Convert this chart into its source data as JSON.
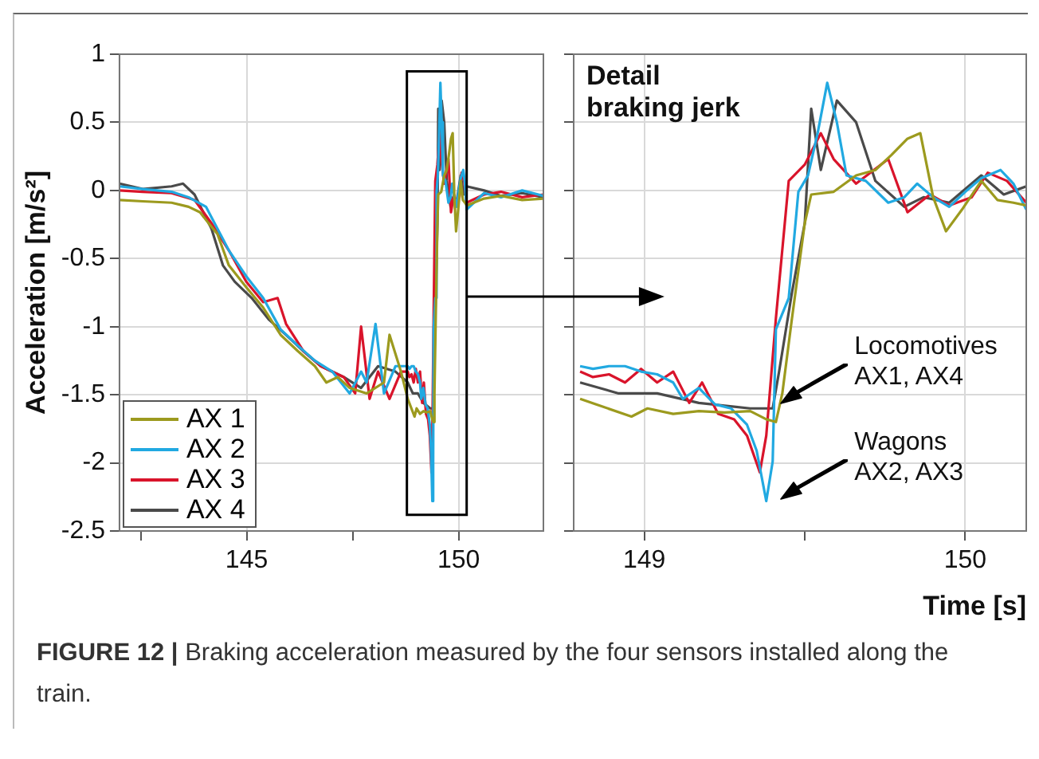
{
  "chart_data": [
    {
      "type": "line",
      "ylabel": "Acceleration [m/s²]",
      "annotations": [
        "FIGURE 12 |",
        "Braking acceleration measured by the four sensors installed along the train."
      ],
      "xlim": [
        142,
        152
      ],
      "xticks": [
        {
          "value": 142.5,
          "label": null
        },
        145,
        {
          "value": 147.5,
          "label": null
        },
        150
      ],
      "ylim": [
        -2.5,
        1
      ],
      "yticks": [
        -2.5,
        -2,
        -1.5,
        -1,
        -0.5,
        0,
        0.5,
        1
      ],
      "grid": true,
      "legend": "bottom left",
      "series": [
        {
          "name": "AX 1",
          "color": "#9c9a1e",
          "x": [
            142,
            142.55,
            143.23,
            143.63,
            143.9,
            144.1,
            144.31,
            144.58,
            144.99,
            145.39,
            145.8,
            146.21,
            146.61,
            146.88,
            147.15,
            147.43,
            147.83,
            148.24,
            148.37,
            148.64,
            148.8,
            148.96,
            149.01,
            149.09,
            149.17,
            149.25,
            149.33,
            149.38,
            149.41,
            149.43,
            149.46,
            149.5,
            149.52,
            149.59,
            149.66,
            149.72,
            149.77,
            149.82,
            149.86,
            149.9,
            149.94,
            149.99,
            150.05,
            150.1,
            150.15,
            150.19,
            150.6,
            151,
            151.5,
            152
          ],
          "values": [
            -0.07,
            -0.08,
            -0.09,
            -0.12,
            -0.16,
            -0.24,
            -0.32,
            -0.55,
            -0.71,
            -0.86,
            -1.06,
            -1.18,
            -1.29,
            -1.41,
            -1.37,
            -1.45,
            -1.49,
            -1.41,
            -1.06,
            -1.33,
            -1.53,
            -1.66,
            -1.6,
            -1.64,
            -1.62,
            -1.63,
            -1.62,
            -1.68,
            -1.7,
            -1.49,
            -0.94,
            -0.24,
            -0.03,
            -0.01,
            0.11,
            0.15,
            0.26,
            0.38,
            0.42,
            -0.05,
            -0.3,
            -0.14,
            0.07,
            -0.07,
            -0.09,
            -0.11,
            -0.06,
            -0.04,
            -0.07,
            -0.06
          ]
        },
        {
          "name": "AX 2",
          "color": "#21a9e1",
          "x": [
            142,
            142.55,
            143.23,
            143.63,
            144.04,
            144.31,
            144.58,
            144.99,
            145.39,
            145.8,
            146.21,
            146.61,
            147.02,
            147.43,
            147.7,
            147.83,
            148.04,
            148.24,
            148.51,
            148.8,
            148.84,
            148.89,
            148.94,
            148.99,
            149.04,
            149.09,
            149.12,
            149.17,
            149.22,
            149.27,
            149.32,
            149.35,
            149.38,
            149.4,
            149.41,
            149.45,
            149.48,
            149.51,
            149.54,
            149.57,
            149.6,
            149.63,
            149.69,
            149.76,
            149.81,
            149.85,
            149.9,
            149.95,
            150,
            150.05,
            150.11,
            150.15,
            150.19,
            150.6,
            151,
            151.5,
            152
          ],
          "values": [
            0.03,
            0.01,
            -0.01,
            -0.05,
            -0.12,
            -0.28,
            -0.44,
            -0.63,
            -0.79,
            -1.02,
            -1.14,
            -1.25,
            -1.33,
            -1.49,
            -1.33,
            -1.41,
            -0.98,
            -1.49,
            -1.29,
            -1.29,
            -1.31,
            -1.29,
            -1.29,
            -1.33,
            -1.35,
            -1.41,
            -1.53,
            -1.45,
            -1.57,
            -1.6,
            -1.72,
            -1.91,
            -2.28,
            -1.99,
            -1.02,
            -0.79,
            -0.01,
            0.11,
            0.42,
            0.79,
            0.5,
            0.11,
            0.07,
            -0.09,
            -0.05,
            0.05,
            -0.05,
            -0.12,
            -0.01,
            0.09,
            0.15,
            0.05,
            -0.14,
            -0.02,
            -0.05,
            0,
            -0.04
          ]
        },
        {
          "name": "AX 3",
          "color": "#d9142b",
          "x": [
            142,
            142.55,
            143.23,
            143.77,
            144.17,
            144.58,
            144.99,
            145.39,
            145.73,
            145.93,
            146.34,
            146.75,
            147.29,
            147.56,
            147.7,
            147.9,
            148.1,
            148.37,
            148.64,
            148.8,
            148.84,
            148.89,
            148.94,
            148.99,
            149.04,
            149.09,
            149.14,
            149.18,
            149.23,
            149.28,
            149.32,
            149.36,
            149.38,
            149.41,
            149.45,
            149.5,
            149.55,
            149.59,
            149.66,
            149.76,
            149.82,
            149.89,
            149.95,
            150.02,
            150.07,
            150.13,
            150.19,
            150.6,
            151,
            151.5,
            152
          ],
          "values": [
            0,
            -0.01,
            -0.02,
            -0.07,
            -0.24,
            -0.44,
            -0.67,
            -0.82,
            -0.79,
            -0.98,
            -1.18,
            -1.29,
            -1.37,
            -1.49,
            -1,
            -1.53,
            -1.33,
            -1.53,
            -1.33,
            -1.33,
            -1.37,
            -1.35,
            -1.41,
            -1.31,
            -1.41,
            -1.33,
            -1.56,
            -1.41,
            -1.64,
            -1.68,
            -1.8,
            -2.07,
            -1.8,
            -0.94,
            0.07,
            0.19,
            0.42,
            0.23,
            0.05,
            0.23,
            -0.16,
            -0.03,
            -0.11,
            -0.05,
            0.13,
            0.07,
            -0.09,
            -0.03,
            -0.01,
            -0.05,
            -0.03
          ]
        },
        {
          "name": "AX 4",
          "color": "#4a4a4a",
          "x": [
            142,
            142.55,
            143.23,
            143.5,
            143.77,
            144.17,
            144.44,
            144.72,
            145.12,
            145.53,
            145.93,
            146.34,
            146.75,
            147.29,
            147.7,
            148.1,
            148.51,
            148.8,
            148.92,
            149.04,
            149.17,
            149.25,
            149.33,
            149.4,
            149.42,
            149.46,
            149.5,
            149.52,
            149.55,
            149.6,
            149.66,
            149.72,
            149.81,
            149.87,
            149.95,
            150.05,
            150.12,
            150.19,
            150.6,
            151,
            151.5,
            152
          ],
          "values": [
            0.05,
            0.01,
            0.03,
            0.05,
            -0.03,
            -0.28,
            -0.55,
            -0.67,
            -0.79,
            -0.95,
            -1.06,
            -1.18,
            -1.29,
            -1.37,
            -1.45,
            -1.29,
            -1.33,
            -1.41,
            -1.49,
            -1.49,
            -1.56,
            -1.58,
            -1.6,
            -1.6,
            -1.33,
            -0.75,
            -0.24,
            0.6,
            0.15,
            0.66,
            0.5,
            0.07,
            -0.12,
            -0.05,
            -0.09,
            0.11,
            -0.03,
            0.03,
            0,
            -0.04,
            -0.02,
            -0.05
          ]
        }
      ]
    },
    {
      "type": "line",
      "xlabel": "Time [s]",
      "title": "Detail braking jerk",
      "annotations": [
        "Locomotives AX1, AX4",
        "Wagons AX2, AX3"
      ],
      "xlim": [
        148.78,
        150.19
      ],
      "xticks": [
        149,
        {
          "value": 149.5,
          "label": null
        },
        150
      ],
      "ylim": [
        -2.5,
        1
      ],
      "yticks": [
        -2.5,
        -2,
        -1.5,
        -1,
        -0.5,
        0,
        0.5,
        1
      ],
      "grid": true,
      "tick_labels": "x",
      "series": [
        {
          "color": "#9c9a1e",
          "x": [
            148.8,
            148.96,
            149.01,
            149.09,
            149.17,
            149.25,
            149.33,
            149.38,
            149.41,
            149.43,
            149.46,
            149.5,
            149.52,
            149.59,
            149.66,
            149.72,
            149.77,
            149.82,
            149.86,
            149.9,
            149.94,
            149.99,
            150.05,
            150.1,
            150.15,
            150.19
          ],
          "values": [
            -1.53,
            -1.66,
            -1.6,
            -1.64,
            -1.62,
            -1.63,
            -1.62,
            -1.68,
            -1.7,
            -1.49,
            -0.94,
            -0.24,
            -0.03,
            -0.01,
            0.11,
            0.15,
            0.26,
            0.38,
            0.42,
            -0.05,
            -0.3,
            -0.14,
            0.07,
            -0.07,
            -0.09,
            -0.11
          ]
        },
        {
          "color": "#21a9e1",
          "x": [
            148.8,
            148.84,
            148.89,
            148.94,
            148.99,
            149.04,
            149.09,
            149.12,
            149.17,
            149.22,
            149.27,
            149.32,
            149.35,
            149.38,
            149.4,
            149.41,
            149.45,
            149.48,
            149.51,
            149.54,
            149.57,
            149.6,
            149.63,
            149.69,
            149.76,
            149.81,
            149.85,
            149.9,
            149.95,
            150,
            150.05,
            150.11,
            150.15,
            150.19
          ],
          "values": [
            -1.29,
            -1.31,
            -1.29,
            -1.29,
            -1.33,
            -1.35,
            -1.41,
            -1.53,
            -1.45,
            -1.57,
            -1.6,
            -1.72,
            -1.91,
            -2.28,
            -1.99,
            -1.02,
            -0.79,
            -0.01,
            0.11,
            0.42,
            0.79,
            0.5,
            0.11,
            0.07,
            -0.09,
            -0.05,
            0.05,
            -0.05,
            -0.12,
            -0.01,
            0.09,
            0.15,
            0.05,
            -0.14
          ]
        },
        {
          "color": "#d9142b",
          "x": [
            148.8,
            148.84,
            148.89,
            148.94,
            148.99,
            149.04,
            149.09,
            149.14,
            149.18,
            149.23,
            149.28,
            149.32,
            149.36,
            149.38,
            149.41,
            149.45,
            149.5,
            149.55,
            149.59,
            149.66,
            149.76,
            149.82,
            149.89,
            149.95,
            150.02,
            150.07,
            150.13,
            150.19
          ],
          "values": [
            -1.33,
            -1.37,
            -1.35,
            -1.41,
            -1.31,
            -1.41,
            -1.33,
            -1.56,
            -1.41,
            -1.64,
            -1.68,
            -1.8,
            -2.07,
            -1.8,
            -0.94,
            0.07,
            0.19,
            0.42,
            0.23,
            0.05,
            0.23,
            -0.16,
            -0.03,
            -0.11,
            -0.05,
            0.13,
            0.07,
            -0.09
          ]
        },
        {
          "color": "#4a4a4a",
          "x": [
            148.8,
            148.92,
            149.04,
            149.17,
            149.25,
            149.33,
            149.4,
            149.42,
            149.46,
            149.5,
            149.52,
            149.55,
            149.6,
            149.66,
            149.72,
            149.81,
            149.87,
            149.95,
            150.05,
            150.12,
            150.19
          ],
          "values": [
            -1.41,
            -1.49,
            -1.49,
            -1.56,
            -1.58,
            -1.6,
            -1.6,
            -1.33,
            -0.75,
            -0.24,
            0.6,
            0.15,
            0.66,
            0.5,
            0.07,
            -0.12,
            -0.05,
            -0.09,
            0.11,
            -0.03,
            0.03
          ]
        }
      ]
    }
  ]
}
